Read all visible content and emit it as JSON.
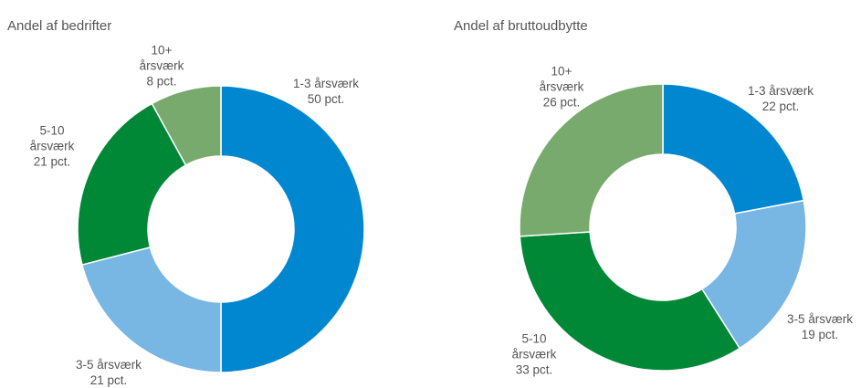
{
  "chart_data": [
    {
      "type": "pie",
      "title": "Andel af bedrifter",
      "categories": [
        "1-3 årsværk",
        "3-5 årsværk",
        "5-10 årsværk",
        "10+ årsværk"
      ],
      "values": [
        50,
        21,
        21,
        8
      ],
      "value_labels": [
        "50 pct.",
        "21 pct.",
        "21 pct.",
        "8 pct."
      ],
      "colors": [
        "#0087d0",
        "#78b6e4",
        "#008837",
        "#78aa6e"
      ]
    },
    {
      "type": "pie",
      "title": "Andel af bruttoudbytte",
      "categories": [
        "1-3 årsværk",
        "3-5 årsværk",
        "5-10 årsværk",
        "10+ årsværk"
      ],
      "values": [
        22,
        19,
        33,
        26
      ],
      "value_labels": [
        "22 pct.",
        "19 pct.",
        "33 pct.",
        "26 pct."
      ],
      "colors": [
        "#0087d0",
        "#78b6e4",
        "#008837",
        "#78aa6e"
      ]
    }
  ]
}
